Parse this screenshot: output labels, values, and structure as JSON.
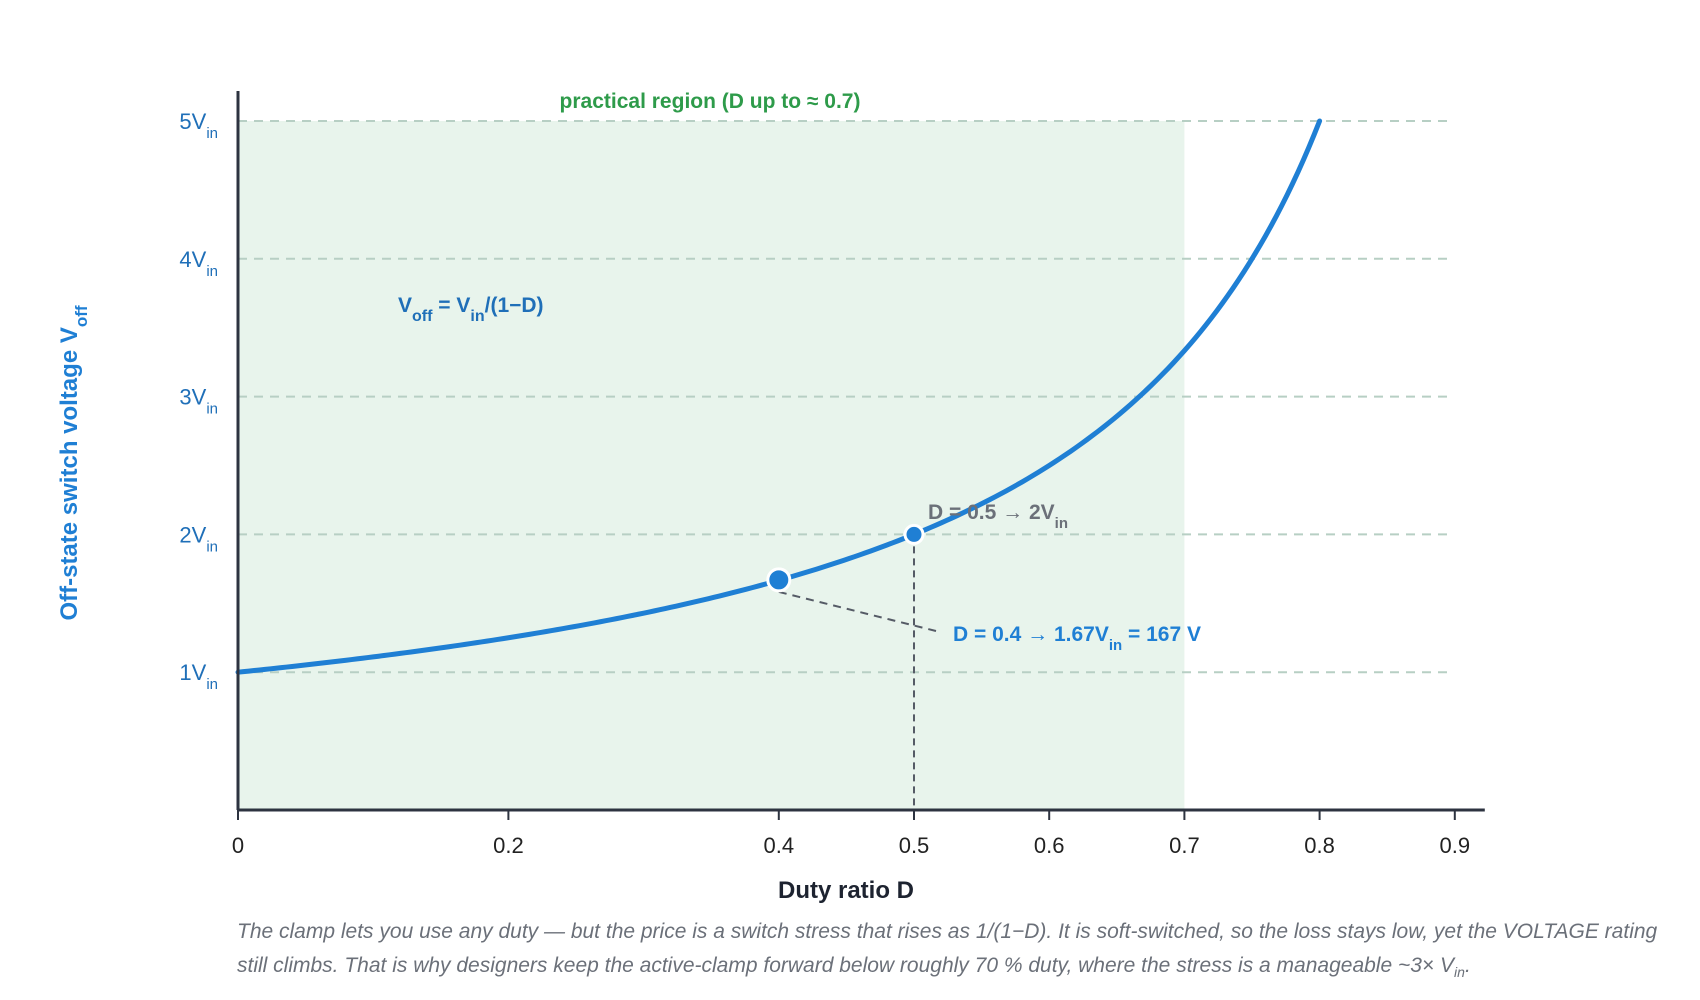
{
  "chart_data": {
    "type": "line",
    "x_range": [
      0,
      0.9
    ],
    "y_range": [
      0,
      5
    ],
    "x_ticks": [
      "0",
      "0.2",
      "0.4",
      "0.5",
      "0.6",
      "0.7",
      "0.8",
      "0.9"
    ],
    "x_tick_values": [
      0,
      0.2,
      0.4,
      0.5,
      0.6,
      0.7,
      0.8,
      0.9
    ],
    "y_ticks": [
      {
        "value": 1,
        "main": "1V",
        "sub": "in"
      },
      {
        "value": 2,
        "main": "2V",
        "sub": "in"
      },
      {
        "value": 3,
        "main": "3V",
        "sub": "in"
      },
      {
        "value": 4,
        "main": "4V",
        "sub": "in"
      },
      {
        "value": 5,
        "main": "5V",
        "sub": "in"
      }
    ],
    "grid": "horizontal dashed at each y tick",
    "xlabel": "Duty ratio D",
    "ylabel": {
      "main": "Off-state switch voltage V",
      "sub": "off"
    },
    "series": [
      {
        "formula": "1/(1-D)",
        "x": [
          0,
          0.1,
          0.2,
          0.3,
          0.4,
          0.5,
          0.6,
          0.7,
          0.75,
          0.8
        ],
        "y": [
          1,
          1.11,
          1.25,
          1.43,
          1.67,
          2,
          2.5,
          3.33,
          4,
          5
        ],
        "color": "#1f7fd4"
      }
    ],
    "shaded_region": {
      "x_from": 0,
      "x_to": 0.7,
      "label": "practical region (D up to ≈ 0.7)",
      "color": "#e8f4ec",
      "label_color": "#2e9b4a"
    },
    "points": [
      {
        "x": 0.4,
        "y": 1.67,
        "label": {
          "p1": "D = 0.4 → 1.67V",
          "sub": "in",
          "p2": " = 167 V"
        },
        "label_color": "#1f7fd4"
      },
      {
        "x": 0.5,
        "y": 2,
        "label": {
          "p1": "D = 0.5 → 2V",
          "sub": "in",
          "p2": ""
        },
        "label_color": "#6b7079"
      }
    ],
    "formula_label": {
      "v": "V",
      "sub1": "off",
      "mid": " = V",
      "sub2": "in",
      "end": "/(1−D)"
    },
    "colors": {
      "curve": "#1f7fd4",
      "axis": "#2d3340",
      "grid": "#b7cfc4",
      "guide": "#555b66",
      "formula": "#1f6fb8"
    }
  },
  "caption": {
    "text1": "The clamp lets you use any duty — but the price is a switch stress that rises as 1/(1−D). It is soft-switched, so the loss stays low, yet the VOLTAGE rating still climbs. That is why designers keep the active-clamp forward below roughly 70 % duty, where the stress is a manageable ~3× V",
    "sub": "in",
    "text2": "."
  }
}
